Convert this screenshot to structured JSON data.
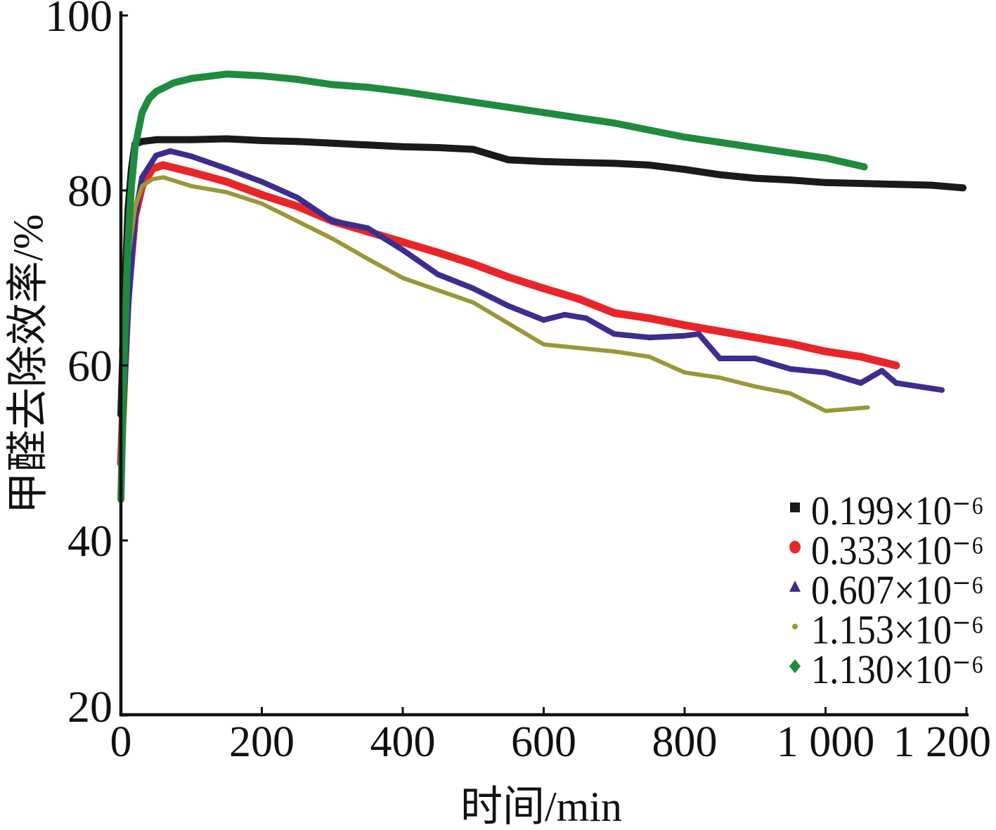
{
  "chart_data": {
    "type": "line",
    "xlabel": "时间/min",
    "ylabel": "甲醛去除效率/%",
    "xlim": [
      0,
      1200
    ],
    "ylim": [
      20,
      100
    ],
    "x_tick_labels": [
      "0",
      "200",
      "400",
      "600",
      "800",
      "1 000",
      "1 200"
    ],
    "y_tick_labels": [
      "20",
      "40",
      "60",
      "80",
      "100"
    ],
    "grid": false,
    "legend_position": "bottom-right",
    "series": [
      {
        "name": "0.199×10⁻⁶",
        "color": "#1a1a1a",
        "marker": "square",
        "x": [
          0,
          5,
          10,
          15,
          20,
          30,
          50,
          100,
          150,
          200,
          250,
          300,
          350,
          400,
          450,
          500,
          550,
          600,
          650,
          700,
          750,
          800,
          850,
          900,
          950,
          1000,
          1050,
          1100,
          1150,
          1195
        ],
        "y": [
          54.4,
          67.2,
          77.7,
          82.5,
          85.3,
          85.6,
          85.8,
          85.8,
          85.9,
          85.7,
          85.6,
          85.4,
          85.2,
          85.0,
          84.9,
          84.7,
          83.5,
          83.3,
          83.2,
          83.1,
          82.9,
          82.4,
          81.8,
          81.4,
          81.2,
          80.9,
          80.8,
          80.7,
          80.6,
          80.3
        ]
      },
      {
        "name": "0.333×10⁻⁶",
        "color": "#e8262a",
        "marker": "circle",
        "x": [
          0,
          5,
          10,
          20,
          30,
          45,
          60,
          100,
          150,
          200,
          250,
          300,
          350,
          400,
          450,
          500,
          550,
          600,
          650,
          700,
          750,
          800,
          850,
          900,
          950,
          1000,
          1050,
          1100
        ],
        "y": [
          48.8,
          59.0,
          68.0,
          77.0,
          80.5,
          82.5,
          82.9,
          82.1,
          81.0,
          79.5,
          78.2,
          76.5,
          75.3,
          74.1,
          72.9,
          71.6,
          70.1,
          68.8,
          67.6,
          66.0,
          65.4,
          64.6,
          63.9,
          63.2,
          62.5,
          61.6,
          61.0,
          60.0
        ]
      },
      {
        "name": "0.607×10⁻⁶",
        "color": "#3b2e8e",
        "marker": "triangle",
        "x": [
          0,
          5,
          10,
          20,
          30,
          50,
          70,
          100,
          150,
          200,
          250,
          300,
          350,
          400,
          450,
          500,
          550,
          600,
          630,
          660,
          700,
          750,
          800,
          820,
          850,
          900,
          950,
          1000,
          1050,
          1080,
          1100,
          1165
        ],
        "y": [
          47.0,
          57.0,
          66.0,
          77.0,
          81.5,
          84.0,
          84.5,
          83.9,
          82.5,
          81.0,
          79.2,
          76.5,
          75.7,
          73.2,
          70.4,
          68.8,
          66.8,
          65.2,
          65.8,
          65.4,
          63.6,
          63.2,
          63.4,
          63.6,
          60.8,
          60.8,
          59.6,
          59.2,
          58.0,
          59.4,
          58.0,
          57.2
        ]
      },
      {
        "name": "1.153×10⁻⁶",
        "color": "#9b9736",
        "marker": "dot",
        "x": [
          0,
          5,
          10,
          20,
          30,
          45,
          60,
          100,
          150,
          200,
          250,
          300,
          350,
          400,
          450,
          500,
          550,
          600,
          650,
          700,
          750,
          800,
          850,
          900,
          950,
          1000,
          1030,
          1060
        ],
        "y": [
          61.6,
          66.0,
          72.0,
          78.0,
          80.5,
          81.3,
          81.5,
          80.5,
          79.8,
          78.5,
          76.5,
          74.5,
          72.2,
          70.0,
          68.6,
          67.2,
          64.8,
          62.4,
          62.0,
          61.6,
          61.0,
          59.2,
          58.6,
          57.6,
          56.8,
          54.8,
          55.0,
          55.2
        ]
      },
      {
        "name": "1.130×10⁻⁶",
        "color": "#1f8b3e",
        "marker": "diamond",
        "x": [
          0,
          5,
          10,
          15,
          20,
          30,
          40,
          50,
          75,
          100,
          150,
          200,
          250,
          300,
          350,
          400,
          450,
          500,
          550,
          600,
          650,
          700,
          750,
          800,
          850,
          900,
          950,
          1000,
          1055
        ],
        "y": [
          44.7,
          62.0,
          73.7,
          80.5,
          84.9,
          88.9,
          90.5,
          91.3,
          92.3,
          92.8,
          93.3,
          93.1,
          92.7,
          92.1,
          91.8,
          91.3,
          90.7,
          90.1,
          89.5,
          88.9,
          88.3,
          87.7,
          86.9,
          86.1,
          85.5,
          84.9,
          84.3,
          83.7,
          82.7
        ]
      }
    ]
  }
}
